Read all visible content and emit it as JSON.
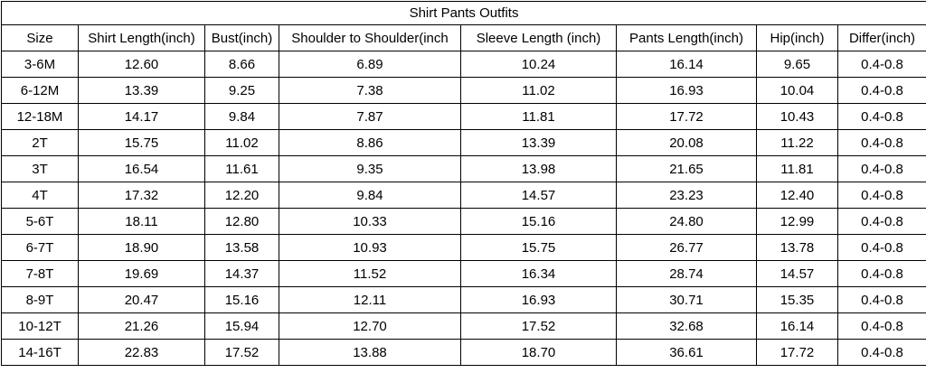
{
  "chart_data": {
    "type": "table",
    "title": "Shirt Pants Outfits",
    "columns": [
      "Size",
      "Shirt Length(inch)",
      "Bust(inch)",
      "Shoulder to Shoulder(inch",
      "Sleeve Length (inch)",
      "Pants Length(inch)",
      "Hip(inch)",
      "Differ(inch)"
    ],
    "rows": [
      [
        "3-6M",
        "12.60",
        "8.66",
        "6.89",
        "10.24",
        "16.14",
        "9.65",
        "0.4-0.8"
      ],
      [
        "6-12M",
        "13.39",
        "9.25",
        "7.38",
        "11.02",
        "16.93",
        "10.04",
        "0.4-0.8"
      ],
      [
        "12-18M",
        "14.17",
        "9.84",
        "7.87",
        "11.81",
        "17.72",
        "10.43",
        "0.4-0.8"
      ],
      [
        "2T",
        "15.75",
        "11.02",
        "8.86",
        "13.39",
        "20.08",
        "11.22",
        "0.4-0.8"
      ],
      [
        "3T",
        "16.54",
        "11.61",
        "9.35",
        "13.98",
        "21.65",
        "11.81",
        "0.4-0.8"
      ],
      [
        "4T",
        "17.32",
        "12.20",
        "9.84",
        "14.57",
        "23.23",
        "12.40",
        "0.4-0.8"
      ],
      [
        "5-6T",
        "18.11",
        "12.80",
        "10.33",
        "15.16",
        "24.80",
        "12.99",
        "0.4-0.8"
      ],
      [
        "6-7T",
        "18.90",
        "13.58",
        "10.93",
        "15.75",
        "26.77",
        "13.78",
        "0.4-0.8"
      ],
      [
        "7-8T",
        "19.69",
        "14.37",
        "11.52",
        "16.34",
        "28.74",
        "14.57",
        "0.4-0.8"
      ],
      [
        "8-9T",
        "20.47",
        "15.16",
        "12.11",
        "16.93",
        "30.71",
        "15.35",
        "0.4-0.8"
      ],
      [
        "10-12T",
        "21.26",
        "15.94",
        "12.70",
        "17.52",
        "32.68",
        "16.14",
        "0.4-0.8"
      ],
      [
        "14-16T",
        "22.83",
        "17.52",
        "13.88",
        "18.70",
        "36.61",
        "17.72",
        "0.4-0.8"
      ]
    ],
    "layout": {
      "grid": true,
      "units": "inches"
    }
  },
  "colors": {
    "background": "#ffffff",
    "border": "#000000",
    "text": "#000000"
  }
}
